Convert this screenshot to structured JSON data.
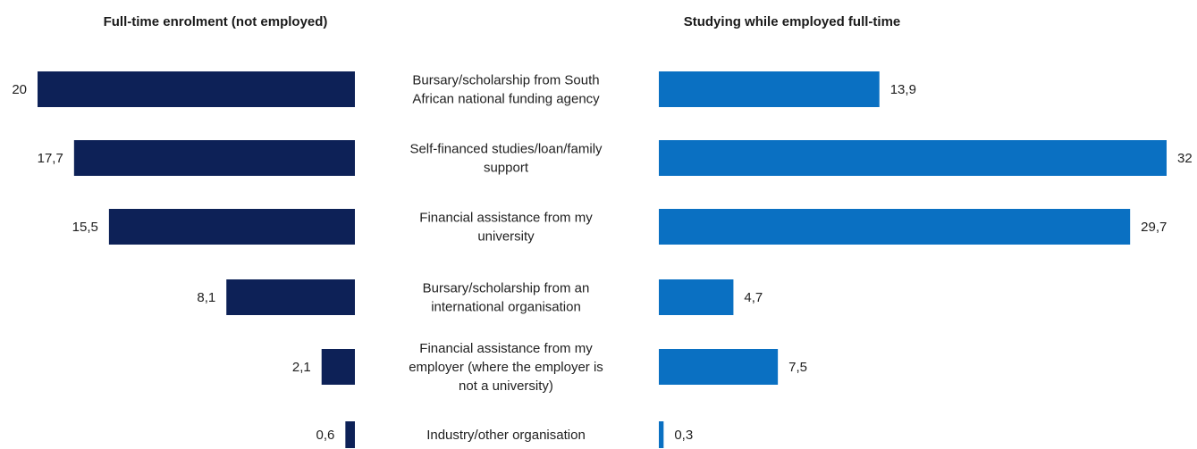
{
  "chart_data": {
    "type": "bar",
    "orientation": "horizontal-butterfly",
    "categories": [
      [
        "Bursary/scholarship from South",
        "African national funding agency"
      ],
      [
        "Self-financed studies/loan/family",
        "support"
      ],
      [
        "Financial assistance from my",
        "university"
      ],
      [
        "Bursary/scholarship from an",
        "international organisation"
      ],
      [
        "Financial assistance from my",
        "employer (where the employer is",
        "not a university)"
      ],
      [
        "Industry/other organisation"
      ]
    ],
    "series": [
      {
        "name": "Full-time enrolment (not employed)",
        "color": "#0d2157",
        "values": [
          20,
          17.7,
          15.5,
          8.1,
          2.1,
          0.6
        ],
        "labels": [
          "20",
          "17,7",
          "15,5",
          "8,1",
          "2,1",
          "0,6"
        ]
      },
      {
        "name": "Studying while employed full-time",
        "color": "#0a70c2",
        "values": [
          13.9,
          32,
          29.7,
          4.7,
          7.5,
          0.3
        ],
        "labels": [
          "13,9",
          "32",
          "29,7",
          "4,7",
          "7,5",
          "0,3"
        ]
      }
    ]
  }
}
